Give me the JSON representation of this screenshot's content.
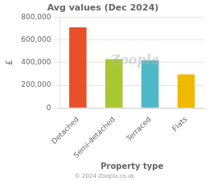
{
  "chart_data": {
    "type": "bar",
    "title": "Avg values (Dec 2024)",
    "categories": [
      "Detached",
      "Semi-detached",
      "Terraced",
      "Flats"
    ],
    "values": [
      710000,
      430000,
      420000,
      295000
    ],
    "colors": [
      "#e8502a",
      "#a8c832",
      "#50b8c8",
      "#f0b800"
    ],
    "ylabel": "£",
    "xlabel": "Property type",
    "ylim": [
      0,
      800000
    ],
    "yticks": [
      0,
      {
        "value": 200000,
        "label": "200,000"
      },
      {
        "value": 400000,
        "label": "400,000"
      },
      {
        "value": 600000,
        "label": "600,000"
      },
      {
        "value": 800000,
        "label": "800,000"
      }
    ],
    "grid": true,
    "annotations": [
      "Zoopla",
      "© 2024 Zoopla.co.uk"
    ]
  }
}
